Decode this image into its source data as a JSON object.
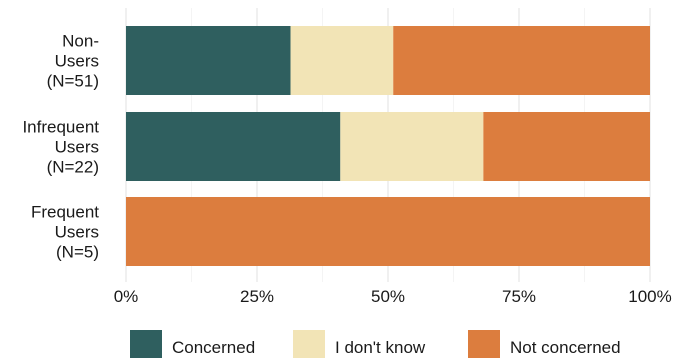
{
  "chart_data": {
    "type": "bar",
    "orientation": "horizontal",
    "stacked": true,
    "percent_axis": true,
    "categories": [
      [
        "Non-",
        "Users",
        "(N=51)"
      ],
      [
        "Infrequent",
        "Users",
        "(N=22)"
      ],
      [
        "Frequent",
        "Users",
        "(N=5)"
      ]
    ],
    "series": [
      {
        "name": "Concerned",
        "color": "#2f5f5f",
        "values": [
          31.4,
          40.9,
          0
        ]
      },
      {
        "name": "I don't know",
        "color": "#f2e4b6",
        "values": [
          19.6,
          27.3,
          0
        ]
      },
      {
        "name": "Not concerned",
        "color": "#dc7d3e",
        "values": [
          49.0,
          31.8,
          100
        ]
      }
    ],
    "x_ticks": [
      "0%",
      "25%",
      "50%",
      "75%",
      "100%"
    ],
    "xlim": [
      0,
      100
    ],
    "grid": true,
    "legend_position": "bottom"
  }
}
